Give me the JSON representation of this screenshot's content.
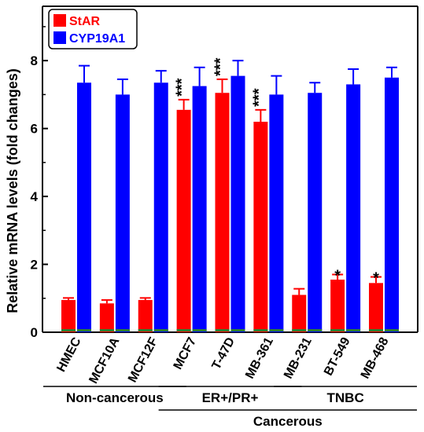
{
  "chart_data": {
    "type": "bar",
    "ylabel": "Relative mRNA levels (fold changes)",
    "ylim": [
      0,
      9.6
    ],
    "yticks": [
      0,
      2,
      4,
      6,
      8
    ],
    "grid": false,
    "legend_position": "top-left",
    "categories": [
      "HMEC",
      "MCF10A",
      "MCF12F",
      "MCF7",
      "T-47D",
      "MB-361",
      "MB-231",
      "BT-549",
      "MB-468"
    ],
    "series": [
      {
        "name": "StAR",
        "color": "#ff0000",
        "values": [
          0.95,
          0.85,
          0.95,
          6.55,
          7.05,
          6.2,
          1.1,
          1.55,
          1.45
        ],
        "errors": [
          0.06,
          0.1,
          0.06,
          0.3,
          0.4,
          0.35,
          0.18,
          0.15,
          0.18
        ],
        "significance": [
          "",
          "",
          "",
          "***",
          "***",
          "***",
          "",
          "*",
          "*"
        ]
      },
      {
        "name": "CYP19A1",
        "color": "#0000ff",
        "values": [
          7.35,
          7.0,
          7.35,
          7.25,
          7.55,
          7.0,
          7.05,
          7.3,
          7.5
        ],
        "errors": [
          0.5,
          0.45,
          0.35,
          0.55,
          0.45,
          0.55,
          0.3,
          0.45,
          0.3
        ],
        "significance": [
          "",
          "",
          "",
          "",
          "",
          "",
          "",
          "",
          ""
        ]
      }
    ],
    "groups": [
      {
        "label": "Non-cancerous",
        "from": 0,
        "to": 2
      },
      {
        "label": "ER+/PR+",
        "from": 3,
        "to": 5
      },
      {
        "label": "TNBC",
        "from": 6,
        "to": 8
      }
    ],
    "supergroups": [
      {
        "label": "Cancerous",
        "from": 3,
        "to": 8
      }
    ],
    "bar_base_color": "#2e7d32"
  }
}
